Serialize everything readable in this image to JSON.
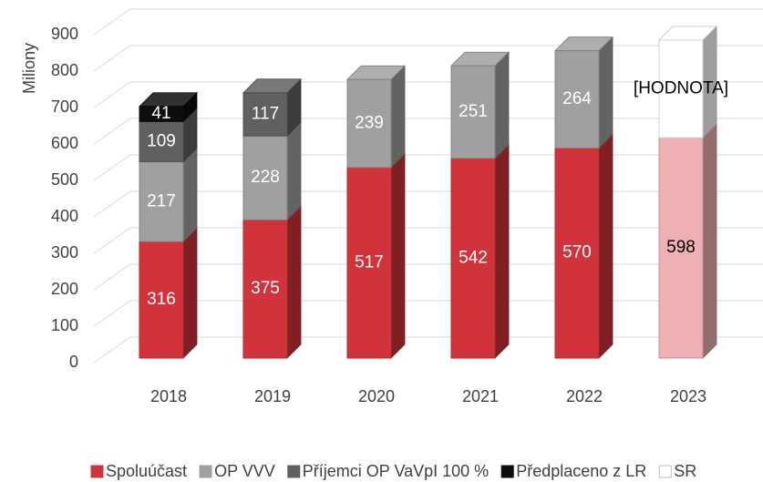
{
  "chart_data": {
    "type": "bar3d_stacked",
    "y_axis_label": "Miliony",
    "categories": [
      "2018",
      "2019",
      "2020",
      "2021",
      "2022",
      "2023"
    ],
    "series": [
      {
        "name": "Spoluúčast",
        "color": "#d0343a",
        "point_colors": [
          "#d0343a",
          "#d0343a",
          "#d0343a",
          "#d0343a",
          "#d0343a",
          "#eeb0b2"
        ],
        "values": [
          316,
          375,
          517,
          542,
          570,
          598
        ]
      },
      {
        "name": "OP VVV",
        "color": "#a0a0a0",
        "values": [
          217,
          228,
          239,
          251,
          264,
          null
        ]
      },
      {
        "name": "Příjemci OP VaVpI 100 %",
        "color": "#606060",
        "values": [
          109,
          117,
          null,
          null,
          null,
          null
        ]
      },
      {
        "name": "Předplaceno z LR",
        "color": "#0d0d0d",
        "values": [
          41,
          null,
          null,
          null,
          null,
          null
        ]
      },
      {
        "name": "SR",
        "color": "#ffffff",
        "values": [
          null,
          null,
          null,
          null,
          null,
          265
        ],
        "value_labels": [
          null,
          null,
          null,
          null,
          null,
          "[HODNOTA]"
        ]
      }
    ],
    "ylim": [
      0,
      900
    ],
    "yticks": [
      0,
      100,
      200,
      300,
      400,
      500,
      600,
      700,
      800,
      900
    ],
    "grid": true,
    "legend": "bottom"
  }
}
